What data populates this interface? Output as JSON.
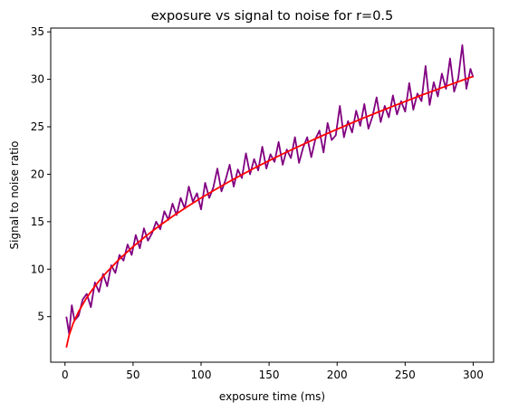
{
  "chart_data": {
    "type": "line",
    "title": "exposure vs signal to noise for r=0.5",
    "xlabel": "exposure time (ms)",
    "ylabel": "Signal to noise ratio",
    "xlim": [
      -10.5,
      315
    ],
    "ylim": [
      0.2,
      35.4
    ],
    "xticks": [
      0,
      50,
      100,
      150,
      200,
      250,
      300
    ],
    "yticks": [
      5,
      10,
      15,
      20,
      25,
      30,
      35
    ],
    "grid": false,
    "legend": "none",
    "series": [
      {
        "role": "measured",
        "color": "#800080",
        "x": [
          1,
          3,
          5,
          7,
          10,
          13,
          16,
          19,
          22,
          25,
          28,
          31,
          34,
          37,
          40,
          43,
          46,
          49,
          52,
          55,
          58,
          61,
          64,
          67,
          70,
          73,
          76,
          79,
          82,
          85,
          88,
          91,
          94,
          97,
          100,
          103,
          106,
          109,
          112,
          115,
          118,
          121,
          124,
          127,
          130,
          133,
          136,
          139,
          142,
          145,
          148,
          151,
          154,
          157,
          160,
          163,
          166,
          169,
          172,
          175,
          178,
          181,
          184,
          187,
          190,
          193,
          196,
          199,
          202,
          205,
          208,
          211,
          214,
          217,
          220,
          223,
          226,
          229,
          232,
          235,
          238,
          241,
          244,
          247,
          250,
          253,
          256,
          259,
          262,
          265,
          268,
          271,
          274,
          277,
          280,
          283,
          286,
          289,
          292,
          295,
          298,
          300
        ],
        "y": [
          5.0,
          3.2,
          6.2,
          4.6,
          5.1,
          6.8,
          7.4,
          6.0,
          8.6,
          7.6,
          9.5,
          8.2,
          10.4,
          9.6,
          11.5,
          10.9,
          12.6,
          11.5,
          13.6,
          12.2,
          14.3,
          13.0,
          13.8,
          15.0,
          14.2,
          16.1,
          15.2,
          16.9,
          15.7,
          17.5,
          16.4,
          18.7,
          17.1,
          18.0,
          16.3,
          19.1,
          17.5,
          18.6,
          20.6,
          18.2,
          19.4,
          21.0,
          18.7,
          20.5,
          19.6,
          22.2,
          20.0,
          21.6,
          20.4,
          22.9,
          20.6,
          22.1,
          21.3,
          23.4,
          21.0,
          22.6,
          21.7,
          23.9,
          21.2,
          22.8,
          23.9,
          21.8,
          23.7,
          24.6,
          22.3,
          25.4,
          23.6,
          24.1,
          27.2,
          23.9,
          25.6,
          24.4,
          26.7,
          25.1,
          27.4,
          24.8,
          26.1,
          28.1,
          25.5,
          27.2,
          26.0,
          28.3,
          26.3,
          27.7,
          26.6,
          29.6,
          26.8,
          28.5,
          27.7,
          31.4,
          27.3,
          29.7,
          28.2,
          30.6,
          29.0,
          32.2,
          28.7,
          30.1,
          33.6,
          29.0,
          31.1,
          30.2
        ]
      },
      {
        "role": "fit",
        "color": "#ff0000",
        "x": [
          1,
          3,
          6,
          10,
          15,
          20,
          25,
          30,
          40,
          50,
          60,
          70,
          80,
          90,
          100,
          110,
          120,
          130,
          140,
          150,
          160,
          170,
          180,
          190,
          200,
          210,
          220,
          230,
          240,
          250,
          260,
          270,
          280,
          290,
          300
        ],
        "y": [
          1.75,
          3.03,
          4.29,
          5.53,
          6.78,
          7.83,
          8.75,
          9.58,
          11.07,
          12.37,
          13.55,
          14.64,
          15.65,
          16.6,
          17.5,
          18.35,
          19.17,
          19.95,
          20.71,
          21.43,
          22.14,
          22.82,
          23.48,
          24.12,
          24.75,
          25.36,
          25.96,
          26.54,
          27.11,
          27.67,
          28.22,
          28.75,
          29.28,
          29.8,
          30.31
        ]
      }
    ]
  }
}
